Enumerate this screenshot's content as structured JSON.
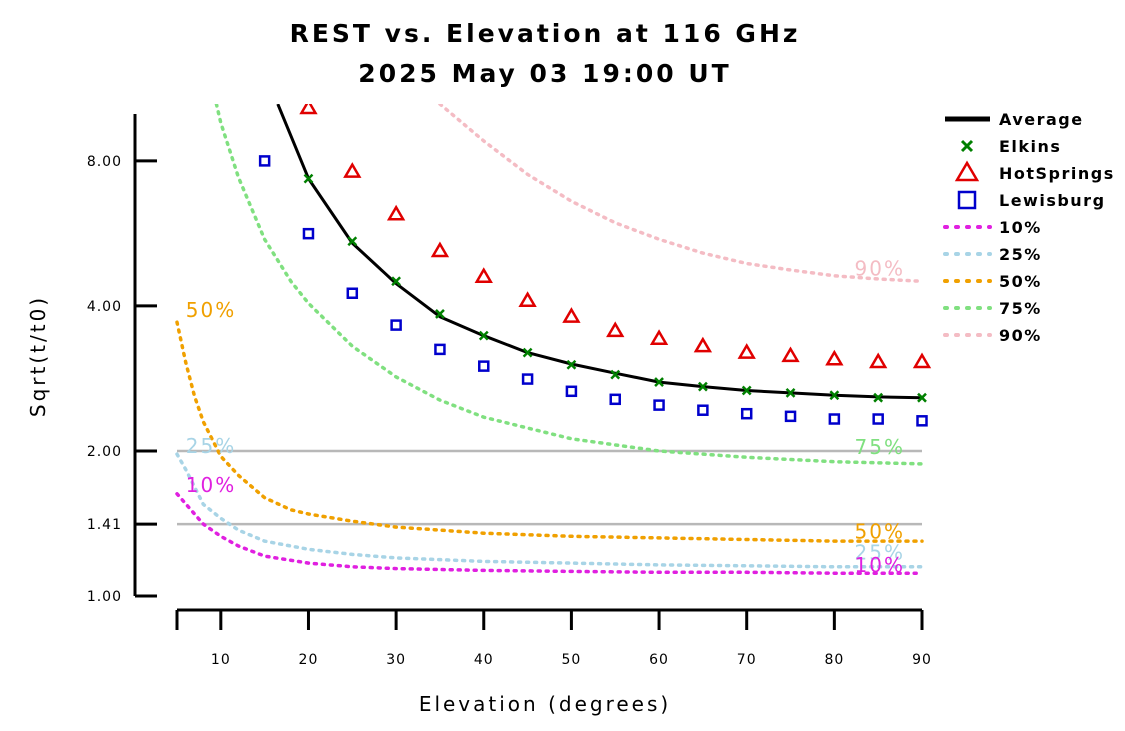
{
  "chart_data": {
    "type": "line",
    "title": "REST vs. Elevation at 116 GHz",
    "subtitle": "2025 May 03 19:00 UT",
    "xlabel": "Elevation (degrees)",
    "ylabel": "Sqrt(t/t0)",
    "y_scale": "log",
    "xlim": [
      5,
      90
    ],
    "ylim": [
      1.0,
      10.5
    ],
    "x_ticks": [
      10,
      20,
      30,
      40,
      50,
      60,
      70,
      80,
      90
    ],
    "x_tick_labels": [
      "10",
      "20",
      "30",
      "40",
      "50",
      "60",
      "70",
      "80",
      "90"
    ],
    "y_ticks": [
      1.0,
      1.41,
      2.0,
      4.0,
      8.0
    ],
    "y_tick_labels": [
      "1.00",
      "1.41",
      "2.00",
      "4.00",
      "8.00"
    ],
    "reference_lines": [
      1.41,
      2.0
    ],
    "legend_position": "right",
    "series": [
      {
        "name": "Average",
        "style": "line",
        "color": "#000000",
        "x": [
          16.5,
          20,
          25,
          30,
          35,
          40,
          45,
          50,
          55,
          60,
          65,
          70,
          75,
          80,
          85,
          90
        ],
        "y": [
          10.5,
          7.35,
          5.4,
          4.45,
          3.8,
          3.47,
          3.2,
          3.03,
          2.9,
          2.78,
          2.72,
          2.67,
          2.64,
          2.61,
          2.59,
          2.58
        ]
      },
      {
        "name": "Elkins",
        "style": "x-marker",
        "color": "#008000",
        "x": [
          20,
          25,
          30,
          35,
          40,
          45,
          50,
          55,
          60,
          65,
          70,
          75,
          80,
          85,
          90
        ],
        "y": [
          7.35,
          5.45,
          4.5,
          3.85,
          3.47,
          3.2,
          3.02,
          2.88,
          2.78,
          2.72,
          2.67,
          2.64,
          2.61,
          2.58,
          2.58
        ]
      },
      {
        "name": "HotSprings",
        "style": "triangle-marker",
        "color": "#e00000",
        "x": [
          20,
          25,
          30,
          35,
          40,
          45,
          50,
          55,
          60,
          65,
          70,
          75,
          80,
          85,
          90
        ],
        "y": [
          10.3,
          7.6,
          6.2,
          5.2,
          4.6,
          4.1,
          3.8,
          3.55,
          3.42,
          3.3,
          3.2,
          3.15,
          3.1,
          3.06,
          3.06
        ]
      },
      {
        "name": "Lewisburg",
        "style": "square-marker",
        "color": "#0000cc",
        "x": [
          15,
          20,
          25,
          30,
          35,
          40,
          45,
          50,
          55,
          60,
          65,
          70,
          75,
          80,
          85,
          90
        ],
        "y": [
          8.0,
          5.65,
          4.25,
          3.65,
          3.25,
          3.0,
          2.82,
          2.66,
          2.56,
          2.49,
          2.43,
          2.39,
          2.36,
          2.33,
          2.33,
          2.31
        ]
      },
      {
        "name": "10%",
        "style": "dotted",
        "color": "#e020e0",
        "end_label": "10%",
        "x": [
          5,
          8,
          10,
          12,
          15,
          20,
          25,
          30,
          40,
          50,
          60,
          70,
          80,
          90
        ],
        "y": [
          1.63,
          1.41,
          1.33,
          1.27,
          1.21,
          1.17,
          1.15,
          1.14,
          1.13,
          1.125,
          1.12,
          1.12,
          1.115,
          1.115
        ]
      },
      {
        "name": "25%",
        "style": "dotted",
        "color": "#a8d4e6",
        "end_label": "25%",
        "x": [
          5,
          6,
          8,
          10,
          12,
          15,
          20,
          25,
          30,
          40,
          50,
          60,
          70,
          80,
          90
        ],
        "y": [
          1.97,
          1.83,
          1.55,
          1.45,
          1.37,
          1.3,
          1.25,
          1.22,
          1.2,
          1.18,
          1.17,
          1.16,
          1.155,
          1.15,
          1.15
        ]
      },
      {
        "name": "50%",
        "style": "dotted",
        "color": "#f0a000",
        "end_label": "50%",
        "x": [
          5,
          6,
          7,
          8,
          10,
          12,
          15,
          18,
          20,
          25,
          30,
          35,
          40,
          50,
          60,
          70,
          80,
          90
        ],
        "y": [
          3.7,
          3.05,
          2.6,
          2.3,
          1.95,
          1.78,
          1.6,
          1.51,
          1.48,
          1.43,
          1.39,
          1.37,
          1.35,
          1.33,
          1.32,
          1.31,
          1.3,
          1.3
        ]
      },
      {
        "name": "75%",
        "style": "dotted",
        "color": "#80e080",
        "end_label": "75%",
        "x": [
          9.5,
          10,
          12,
          15,
          18,
          20,
          25,
          30,
          35,
          40,
          50,
          60,
          70,
          80,
          90
        ],
        "y": [
          10.5,
          9.6,
          7.4,
          5.5,
          4.5,
          4.05,
          3.3,
          2.85,
          2.55,
          2.35,
          2.12,
          2.0,
          1.94,
          1.9,
          1.88
        ]
      },
      {
        "name": "90%",
        "style": "dotted",
        "color": "#f4bcc4",
        "end_label": "90%",
        "x": [
          35,
          40,
          45,
          50,
          55,
          60,
          65,
          70,
          75,
          80,
          85,
          90
        ],
        "y": [
          10.5,
          8.8,
          7.5,
          6.6,
          5.95,
          5.5,
          5.15,
          4.9,
          4.75,
          4.62,
          4.55,
          4.5
        ]
      }
    ],
    "curve_labels": [
      {
        "text": "50%",
        "color": "#f0a000",
        "x": 6.0,
        "y": 3.92
      },
      {
        "text": "25%",
        "color": "#a8d4e6",
        "x": 6.0,
        "y": 2.05
      },
      {
        "text": "10%",
        "color": "#e020e0",
        "x": 6.0,
        "y": 1.7
      },
      {
        "text": "90%",
        "color": "#f4bcc4",
        "x": 82.3,
        "y": 4.78
      },
      {
        "text": "75%",
        "color": "#80e080",
        "x": 82.3,
        "y": 2.04
      },
      {
        "text": "50%",
        "color": "#f0a000",
        "x": 82.3,
        "y": 1.36
      },
      {
        "text": "25%",
        "color": "#a8d4e6",
        "x": 82.3,
        "y": 1.23
      },
      {
        "text": "10%",
        "color": "#e020e0",
        "x": 82.3,
        "y": 1.16
      }
    ]
  }
}
